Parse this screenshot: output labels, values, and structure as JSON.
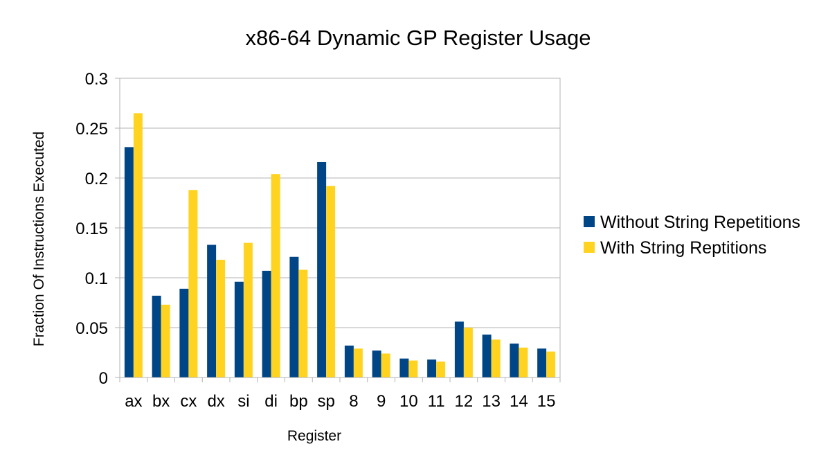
{
  "chart_data": {
    "type": "bar",
    "title": "x86-64 Dynamic GP Register Usage",
    "xlabel": "Register",
    "ylabel": "Fraction Of Instructions Executed",
    "ylim": [
      0,
      0.3
    ],
    "yticks": [
      "0",
      "0.05",
      "0.1",
      "0.15",
      "0.2",
      "0.25",
      "0.3"
    ],
    "grid": true,
    "legend_position": "right",
    "categories": [
      "ax",
      "bx",
      "cx",
      "dx",
      "si",
      "di",
      "bp",
      "sp",
      "8",
      "9",
      "10",
      "11",
      "12",
      "13",
      "14",
      "15"
    ],
    "series": [
      {
        "name": "Without String Repetitions",
        "color": "#004586",
        "values": [
          0.231,
          0.082,
          0.089,
          0.133,
          0.096,
          0.107,
          0.121,
          0.216,
          0.032,
          0.027,
          0.019,
          0.018,
          0.056,
          0.043,
          0.034,
          0.029
        ]
      },
      {
        "name": "With String Reptitions",
        "color": "#ffd320",
        "values": [
          0.265,
          0.073,
          0.188,
          0.118,
          0.135,
          0.204,
          0.108,
          0.192,
          0.029,
          0.024,
          0.017,
          0.016,
          0.05,
          0.038,
          0.03,
          0.026
        ]
      }
    ]
  }
}
